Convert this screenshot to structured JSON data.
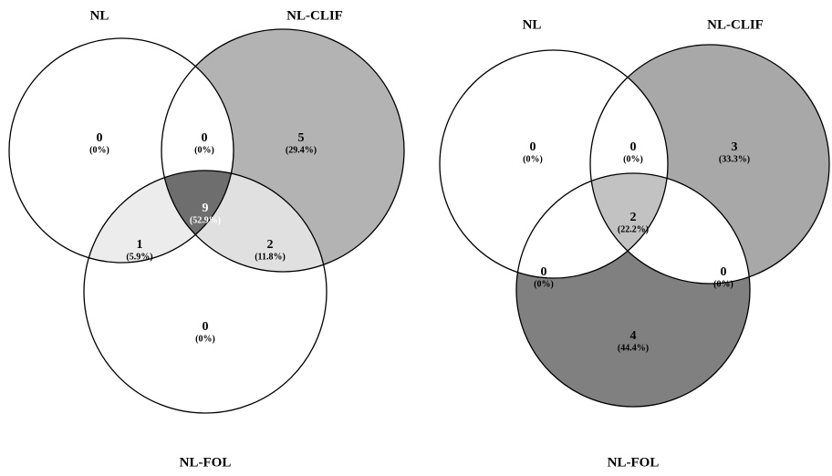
{
  "diagrams": [
    {
      "sets": [
        "NL",
        "NL-CLIF",
        "NL-FOL"
      ],
      "regions": [
        {
          "count": 0,
          "percent": "(0%)"
        },
        {
          "count": 0,
          "percent": "(0%)"
        },
        {
          "count": 5,
          "percent": "(29.4%)"
        },
        {
          "count": 9,
          "percent": "(52.9%)"
        },
        {
          "count": 1,
          "percent": "(5.9%)"
        },
        {
          "count": 2,
          "percent": "(11.8%)"
        },
        {
          "count": 0,
          "percent": "(0%)"
        }
      ]
    },
    {
      "sets": [
        "NL",
        "NL-CLIF",
        "NL-FOL"
      ],
      "regions": [
        {
          "count": 0,
          "percent": "(0%)"
        },
        {
          "count": 0,
          "percent": "(0%)"
        },
        {
          "count": 3,
          "percent": "(33.3%)"
        },
        {
          "count": 2,
          "percent": "(22.2%)"
        },
        {
          "count": 0,
          "percent": "(0%)"
        },
        {
          "count": 0,
          "percent": "(0%)"
        },
        {
          "count": 4,
          "percent": "(44.4%)"
        }
      ]
    }
  ]
}
